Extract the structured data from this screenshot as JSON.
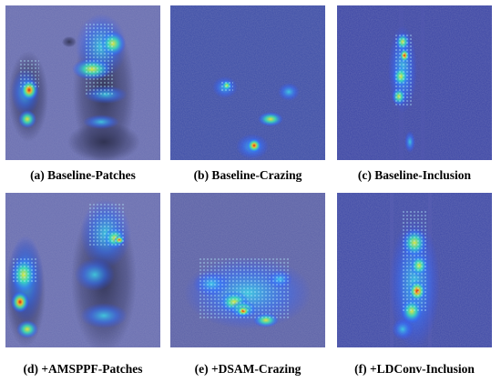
{
  "figure": {
    "panels": [
      {
        "caption": "(a) Baseline-Patches",
        "defect": "patches",
        "method": "Baseline"
      },
      {
        "caption": "(b) Baseline-Crazing",
        "defect": "crazing",
        "method": "Baseline"
      },
      {
        "caption": "(c) Baseline-Inclusion",
        "defect": "inclusion",
        "method": "Baseline"
      },
      {
        "caption": "(d) +AMSPPF-Patches",
        "defect": "patches",
        "method": "+AMSPPF"
      },
      {
        "caption": "(e) +DSAM-Crazing",
        "defect": "crazing",
        "method": "+DSAM"
      },
      {
        "caption": "(f) +LDConv-Inclusion",
        "defect": "inclusion",
        "method": "+LDConv"
      }
    ],
    "colors": {
      "background_blue": "#5a5fa8",
      "heat_low": "#3b6cff",
      "heat_mid": "#26e0c8",
      "heat_high": "#e8f040",
      "heat_peak": "#e82a1a"
    }
  }
}
